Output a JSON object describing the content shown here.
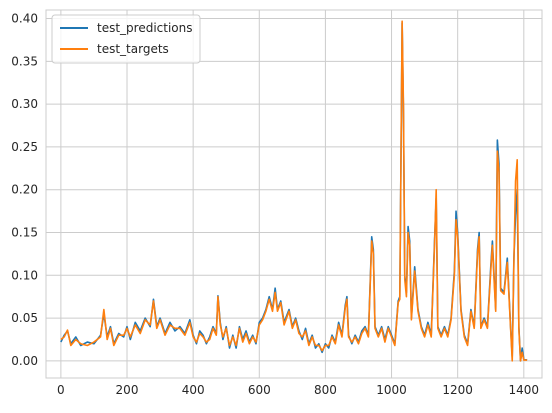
{
  "chart_data": {
    "type": "line",
    "title": "",
    "xlabel": "",
    "ylabel": "",
    "xlim": [
      -45,
      1455
    ],
    "ylim": [
      -0.02,
      0.41
    ],
    "grid": true,
    "legend_position": "top-left",
    "x_ticks": [
      0,
      200,
      400,
      600,
      800,
      1000,
      1200,
      1400
    ],
    "x_tick_labels": [
      "0",
      "200",
      "400",
      "600",
      "800",
      "1000",
      "1200",
      "1400"
    ],
    "y_ticks": [
      0.0,
      0.05,
      0.1,
      0.15,
      0.2,
      0.25,
      0.3,
      0.35,
      0.4
    ],
    "y_tick_labels": [
      "0.00",
      "0.05",
      "0.10",
      "0.15",
      "0.20",
      "0.25",
      "0.30",
      "0.35",
      "0.40"
    ],
    "series": [
      {
        "name": "test_predictions",
        "color": "#1f77b4",
        "points": [
          [
            0,
            0.022
          ],
          [
            10,
            0.03
          ],
          [
            20,
            0.035
          ],
          [
            30,
            0.02
          ],
          [
            45,
            0.028
          ],
          [
            60,
            0.018
          ],
          [
            80,
            0.022
          ],
          [
            100,
            0.02
          ],
          [
            120,
            0.03
          ],
          [
            130,
            0.055
          ],
          [
            140,
            0.028
          ],
          [
            150,
            0.04
          ],
          [
            160,
            0.02
          ],
          [
            175,
            0.032
          ],
          [
            190,
            0.028
          ],
          [
            200,
            0.04
          ],
          [
            210,
            0.025
          ],
          [
            225,
            0.045
          ],
          [
            240,
            0.035
          ],
          [
            255,
            0.05
          ],
          [
            270,
            0.04
          ],
          [
            280,
            0.072
          ],
          [
            290,
            0.04
          ],
          [
            300,
            0.05
          ],
          [
            315,
            0.032
          ],
          [
            330,
            0.045
          ],
          [
            345,
            0.035
          ],
          [
            360,
            0.04
          ],
          [
            375,
            0.032
          ],
          [
            390,
            0.048
          ],
          [
            400,
            0.03
          ],
          [
            410,
            0.02
          ],
          [
            420,
            0.035
          ],
          [
            430,
            0.03
          ],
          [
            440,
            0.02
          ],
          [
            450,
            0.028
          ],
          [
            460,
            0.04
          ],
          [
            470,
            0.032
          ],
          [
            475,
            0.076
          ],
          [
            482,
            0.045
          ],
          [
            490,
            0.025
          ],
          [
            500,
            0.04
          ],
          [
            510,
            0.015
          ],
          [
            520,
            0.03
          ],
          [
            530,
            0.015
          ],
          [
            540,
            0.04
          ],
          [
            550,
            0.025
          ],
          [
            560,
            0.035
          ],
          [
            570,
            0.022
          ],
          [
            580,
            0.03
          ],
          [
            590,
            0.02
          ],
          [
            600,
            0.045
          ],
          [
            610,
            0.05
          ],
          [
            620,
            0.06
          ],
          [
            630,
            0.075
          ],
          [
            640,
            0.06
          ],
          [
            648,
            0.085
          ],
          [
            655,
            0.06
          ],
          [
            665,
            0.07
          ],
          [
            675,
            0.045
          ],
          [
            690,
            0.06
          ],
          [
            700,
            0.04
          ],
          [
            710,
            0.05
          ],
          [
            720,
            0.035
          ],
          [
            730,
            0.025
          ],
          [
            740,
            0.038
          ],
          [
            750,
            0.02
          ],
          [
            760,
            0.03
          ],
          [
            770,
            0.015
          ],
          [
            780,
            0.02
          ],
          [
            790,
            0.01
          ],
          [
            800,
            0.02
          ],
          [
            810,
            0.015
          ],
          [
            820,
            0.03
          ],
          [
            830,
            0.022
          ],
          [
            840,
            0.045
          ],
          [
            850,
            0.03
          ],
          [
            860,
            0.065
          ],
          [
            865,
            0.075
          ],
          [
            870,
            0.03
          ],
          [
            880,
            0.02
          ],
          [
            890,
            0.03
          ],
          [
            900,
            0.022
          ],
          [
            910,
            0.035
          ],
          [
            920,
            0.04
          ],
          [
            930,
            0.03
          ],
          [
            940,
            0.145
          ],
          [
            945,
            0.13
          ],
          [
            950,
            0.04
          ],
          [
            960,
            0.03
          ],
          [
            970,
            0.04
          ],
          [
            980,
            0.025
          ],
          [
            990,
            0.04
          ],
          [
            1000,
            0.03
          ],
          [
            1010,
            0.02
          ],
          [
            1020,
            0.07
          ],
          [
            1025,
            0.075
          ],
          [
            1032,
            0.395
          ],
          [
            1036,
            0.29
          ],
          [
            1040,
            0.1
          ],
          [
            1045,
            0.08
          ],
          [
            1050,
            0.157
          ],
          [
            1055,
            0.14
          ],
          [
            1060,
            0.05
          ],
          [
            1070,
            0.11
          ],
          [
            1080,
            0.06
          ],
          [
            1090,
            0.04
          ],
          [
            1100,
            0.03
          ],
          [
            1110,
            0.045
          ],
          [
            1120,
            0.03
          ],
          [
            1130,
            0.14
          ],
          [
            1135,
            0.19
          ],
          [
            1140,
            0.04
          ],
          [
            1150,
            0.03
          ],
          [
            1160,
            0.04
          ],
          [
            1170,
            0.03
          ],
          [
            1180,
            0.05
          ],
          [
            1190,
            0.105
          ],
          [
            1195,
            0.175
          ],
          [
            1200,
            0.15
          ],
          [
            1210,
            0.06
          ],
          [
            1220,
            0.03
          ],
          [
            1230,
            0.02
          ],
          [
            1240,
            0.06
          ],
          [
            1250,
            0.04
          ],
          [
            1260,
            0.13
          ],
          [
            1265,
            0.15
          ],
          [
            1270,
            0.04
          ],
          [
            1280,
            0.05
          ],
          [
            1290,
            0.04
          ],
          [
            1300,
            0.11
          ],
          [
            1305,
            0.14
          ],
          [
            1310,
            0.1
          ],
          [
            1315,
            0.06
          ],
          [
            1320,
            0.258
          ],
          [
            1325,
            0.23
          ],
          [
            1330,
            0.085
          ],
          [
            1340,
            0.08
          ],
          [
            1350,
            0.12
          ],
          [
            1360,
            0.04
          ],
          [
            1365,
            0.005
          ],
          [
            1370,
            0.12
          ],
          [
            1375,
            0.17
          ],
          [
            1380,
            0.2
          ],
          [
            1385,
            0.04
          ],
          [
            1390,
            0.0
          ],
          [
            1395,
            0.015
          ],
          [
            1400,
            0.002
          ],
          [
            1410,
            0.001
          ]
        ]
      },
      {
        "name": "test_targets",
        "color": "#ff7f0e",
        "points": [
          [
            0,
            0.025
          ],
          [
            10,
            0.028
          ],
          [
            20,
            0.036
          ],
          [
            30,
            0.018
          ],
          [
            45,
            0.025
          ],
          [
            60,
            0.02
          ],
          [
            80,
            0.018
          ],
          [
            100,
            0.022
          ],
          [
            120,
            0.028
          ],
          [
            130,
            0.06
          ],
          [
            140,
            0.025
          ],
          [
            150,
            0.038
          ],
          [
            160,
            0.018
          ],
          [
            175,
            0.03
          ],
          [
            190,
            0.03
          ],
          [
            200,
            0.038
          ],
          [
            210,
            0.028
          ],
          [
            225,
            0.042
          ],
          [
            240,
            0.032
          ],
          [
            255,
            0.048
          ],
          [
            270,
            0.042
          ],
          [
            280,
            0.07
          ],
          [
            290,
            0.038
          ],
          [
            300,
            0.048
          ],
          [
            315,
            0.03
          ],
          [
            330,
            0.042
          ],
          [
            345,
            0.038
          ],
          [
            360,
            0.038
          ],
          [
            375,
            0.03
          ],
          [
            390,
            0.045
          ],
          [
            400,
            0.028
          ],
          [
            410,
            0.022
          ],
          [
            420,
            0.032
          ],
          [
            430,
            0.028
          ],
          [
            440,
            0.022
          ],
          [
            450,
            0.025
          ],
          [
            460,
            0.038
          ],
          [
            470,
            0.03
          ],
          [
            475,
            0.075
          ],
          [
            482,
            0.042
          ],
          [
            490,
            0.028
          ],
          [
            500,
            0.038
          ],
          [
            510,
            0.018
          ],
          [
            520,
            0.028
          ],
          [
            530,
            0.018
          ],
          [
            540,
            0.038
          ],
          [
            550,
            0.022
          ],
          [
            560,
            0.032
          ],
          [
            570,
            0.02
          ],
          [
            580,
            0.028
          ],
          [
            590,
            0.022
          ],
          [
            600,
            0.042
          ],
          [
            610,
            0.048
          ],
          [
            620,
            0.058
          ],
          [
            630,
            0.072
          ],
          [
            640,
            0.058
          ],
          [
            648,
            0.08
          ],
          [
            655,
            0.058
          ],
          [
            665,
            0.068
          ],
          [
            675,
            0.042
          ],
          [
            690,
            0.058
          ],
          [
            700,
            0.038
          ],
          [
            710,
            0.048
          ],
          [
            720,
            0.032
          ],
          [
            730,
            0.028
          ],
          [
            740,
            0.035
          ],
          [
            750,
            0.018
          ],
          [
            760,
            0.028
          ],
          [
            770,
            0.018
          ],
          [
            780,
            0.018
          ],
          [
            790,
            0.012
          ],
          [
            800,
            0.018
          ],
          [
            810,
            0.018
          ],
          [
            820,
            0.028
          ],
          [
            830,
            0.02
          ],
          [
            840,
            0.042
          ],
          [
            850,
            0.028
          ],
          [
            860,
            0.062
          ],
          [
            865,
            0.072
          ],
          [
            870,
            0.028
          ],
          [
            880,
            0.022
          ],
          [
            890,
            0.028
          ],
          [
            900,
            0.02
          ],
          [
            910,
            0.032
          ],
          [
            920,
            0.038
          ],
          [
            930,
            0.028
          ],
          [
            940,
            0.14
          ],
          [
            945,
            0.125
          ],
          [
            950,
            0.038
          ],
          [
            960,
            0.028
          ],
          [
            970,
            0.038
          ],
          [
            980,
            0.022
          ],
          [
            990,
            0.038
          ],
          [
            1000,
            0.028
          ],
          [
            1010,
            0.018
          ],
          [
            1020,
            0.068
          ],
          [
            1025,
            0.072
          ],
          [
            1032,
            0.397
          ],
          [
            1036,
            0.3
          ],
          [
            1040,
            0.095
          ],
          [
            1045,
            0.075
          ],
          [
            1050,
            0.15
          ],
          [
            1055,
            0.135
          ],
          [
            1060,
            0.048
          ],
          [
            1070,
            0.105
          ],
          [
            1080,
            0.058
          ],
          [
            1090,
            0.038
          ],
          [
            1100,
            0.028
          ],
          [
            1110,
            0.042
          ],
          [
            1120,
            0.028
          ],
          [
            1130,
            0.135
          ],
          [
            1135,
            0.2
          ],
          [
            1140,
            0.038
          ],
          [
            1150,
            0.028
          ],
          [
            1160,
            0.038
          ],
          [
            1170,
            0.028
          ],
          [
            1180,
            0.048
          ],
          [
            1190,
            0.1
          ],
          [
            1195,
            0.165
          ],
          [
            1200,
            0.145
          ],
          [
            1210,
            0.058
          ],
          [
            1220,
            0.028
          ],
          [
            1230,
            0.018
          ],
          [
            1240,
            0.058
          ],
          [
            1250,
            0.038
          ],
          [
            1260,
            0.125
          ],
          [
            1265,
            0.145
          ],
          [
            1270,
            0.038
          ],
          [
            1280,
            0.048
          ],
          [
            1290,
            0.038
          ],
          [
            1300,
            0.105
          ],
          [
            1305,
            0.135
          ],
          [
            1310,
            0.095
          ],
          [
            1315,
            0.058
          ],
          [
            1320,
            0.245
          ],
          [
            1325,
            0.22
          ],
          [
            1330,
            0.082
          ],
          [
            1340,
            0.078
          ],
          [
            1350,
            0.115
          ],
          [
            1360,
            0.038
          ],
          [
            1365,
            0.0
          ],
          [
            1370,
            0.115
          ],
          [
            1375,
            0.21
          ],
          [
            1380,
            0.235
          ],
          [
            1385,
            0.038
          ],
          [
            1390,
            0.0
          ],
          [
            1395,
            0.01
          ],
          [
            1400,
            0.001
          ],
          [
            1410,
            0.001
          ]
        ]
      }
    ]
  }
}
